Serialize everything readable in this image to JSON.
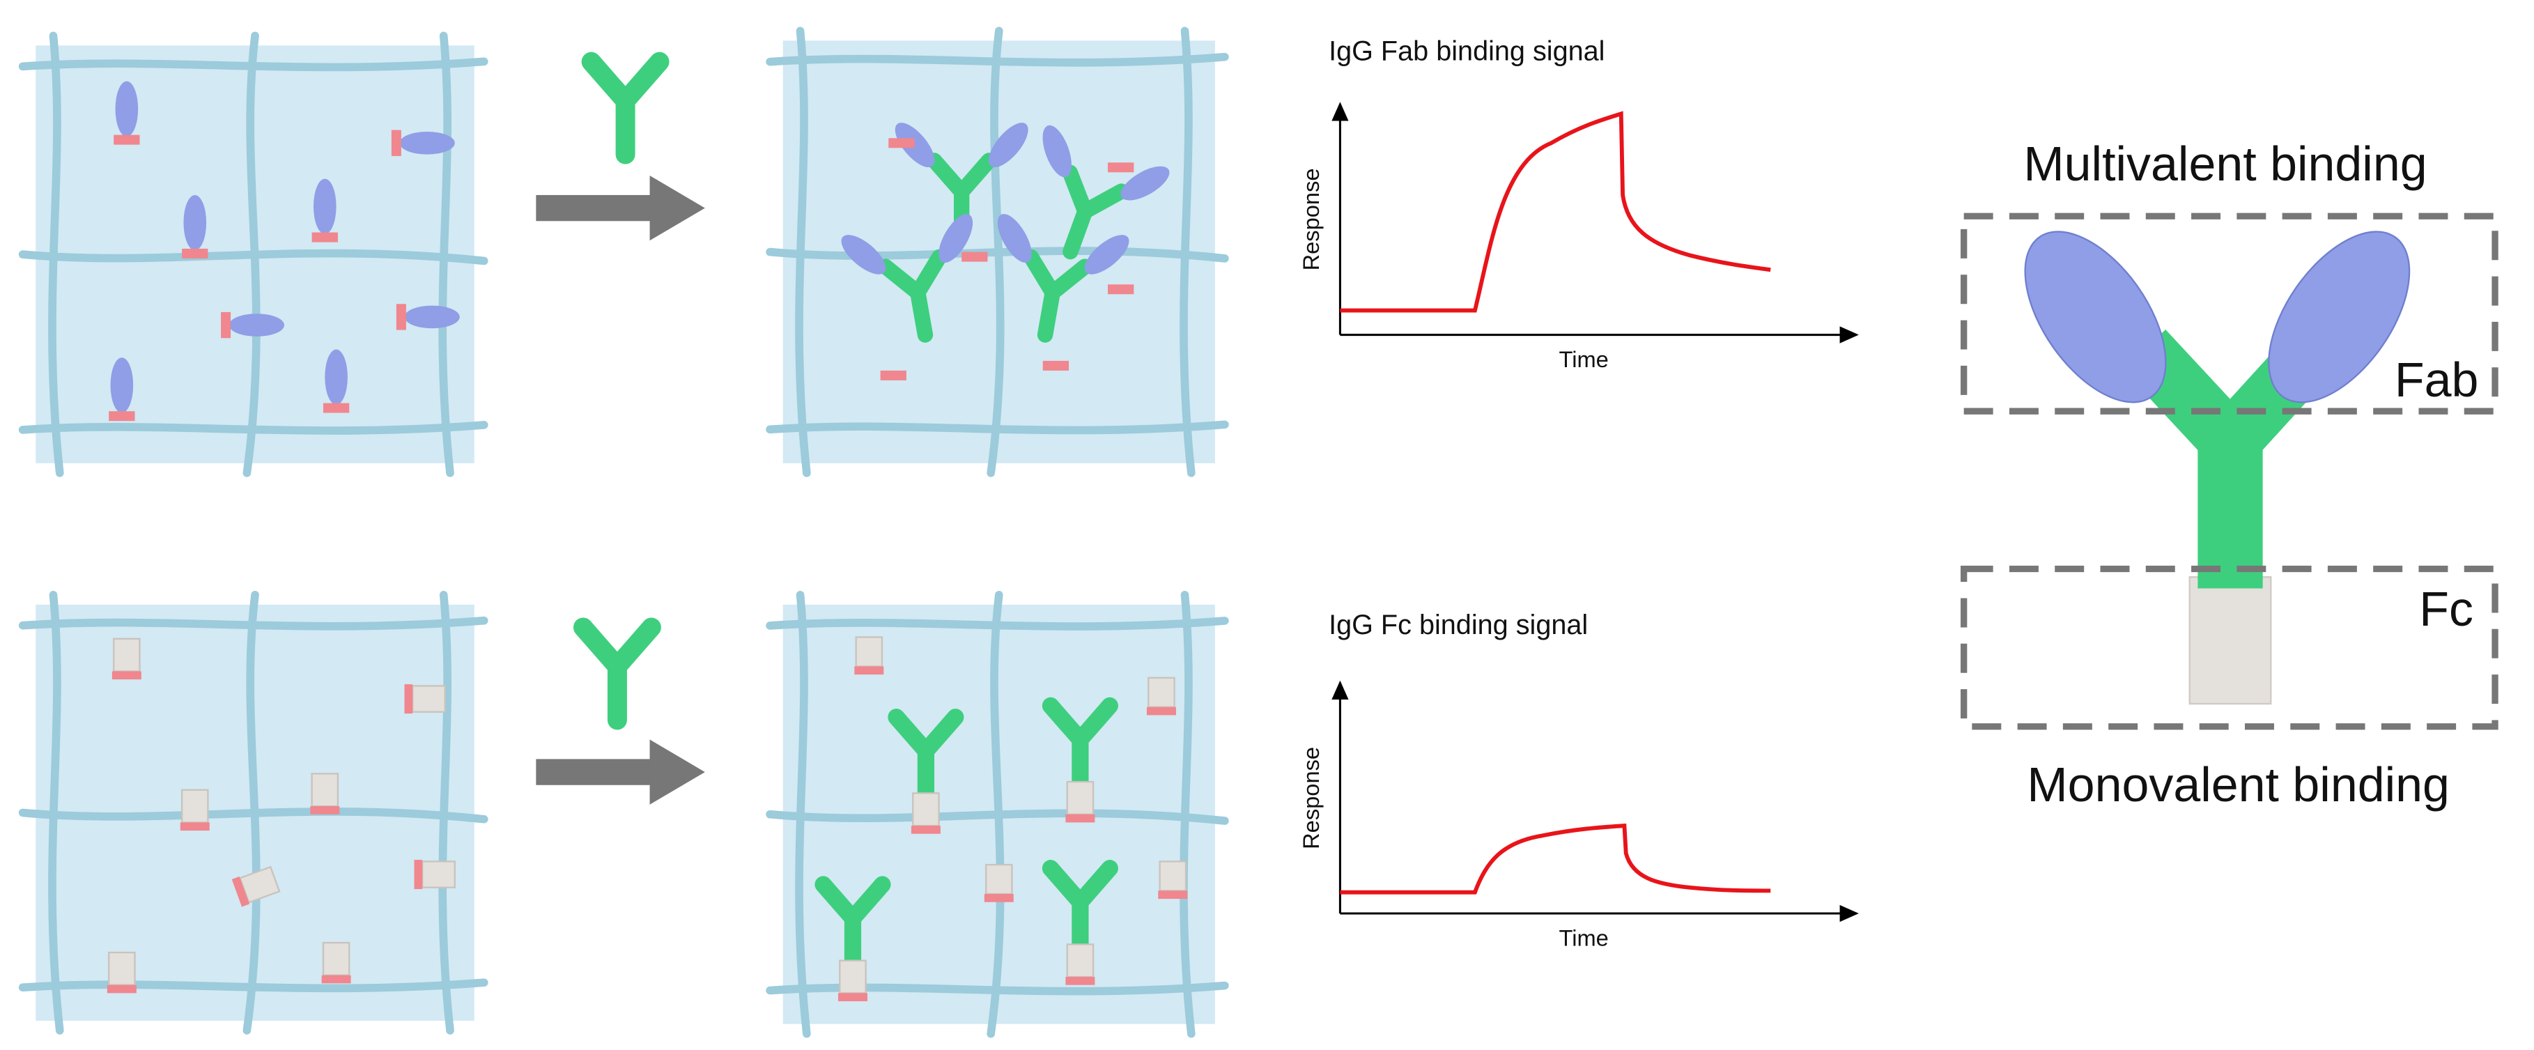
{
  "fab_plot": {
    "title": "IgG Fab binding signal",
    "y_label": "Response",
    "x_label": "Time"
  },
  "fc_plot": {
    "title": "IgG Fc binding signal",
    "y_label": "Response",
    "x_label": "Time"
  },
  "antibody": {
    "top_label": "Multivalent binding",
    "fab_label": "Fab",
    "fc_label": "Fc",
    "bottom_label": "Monovalent binding"
  }
}
